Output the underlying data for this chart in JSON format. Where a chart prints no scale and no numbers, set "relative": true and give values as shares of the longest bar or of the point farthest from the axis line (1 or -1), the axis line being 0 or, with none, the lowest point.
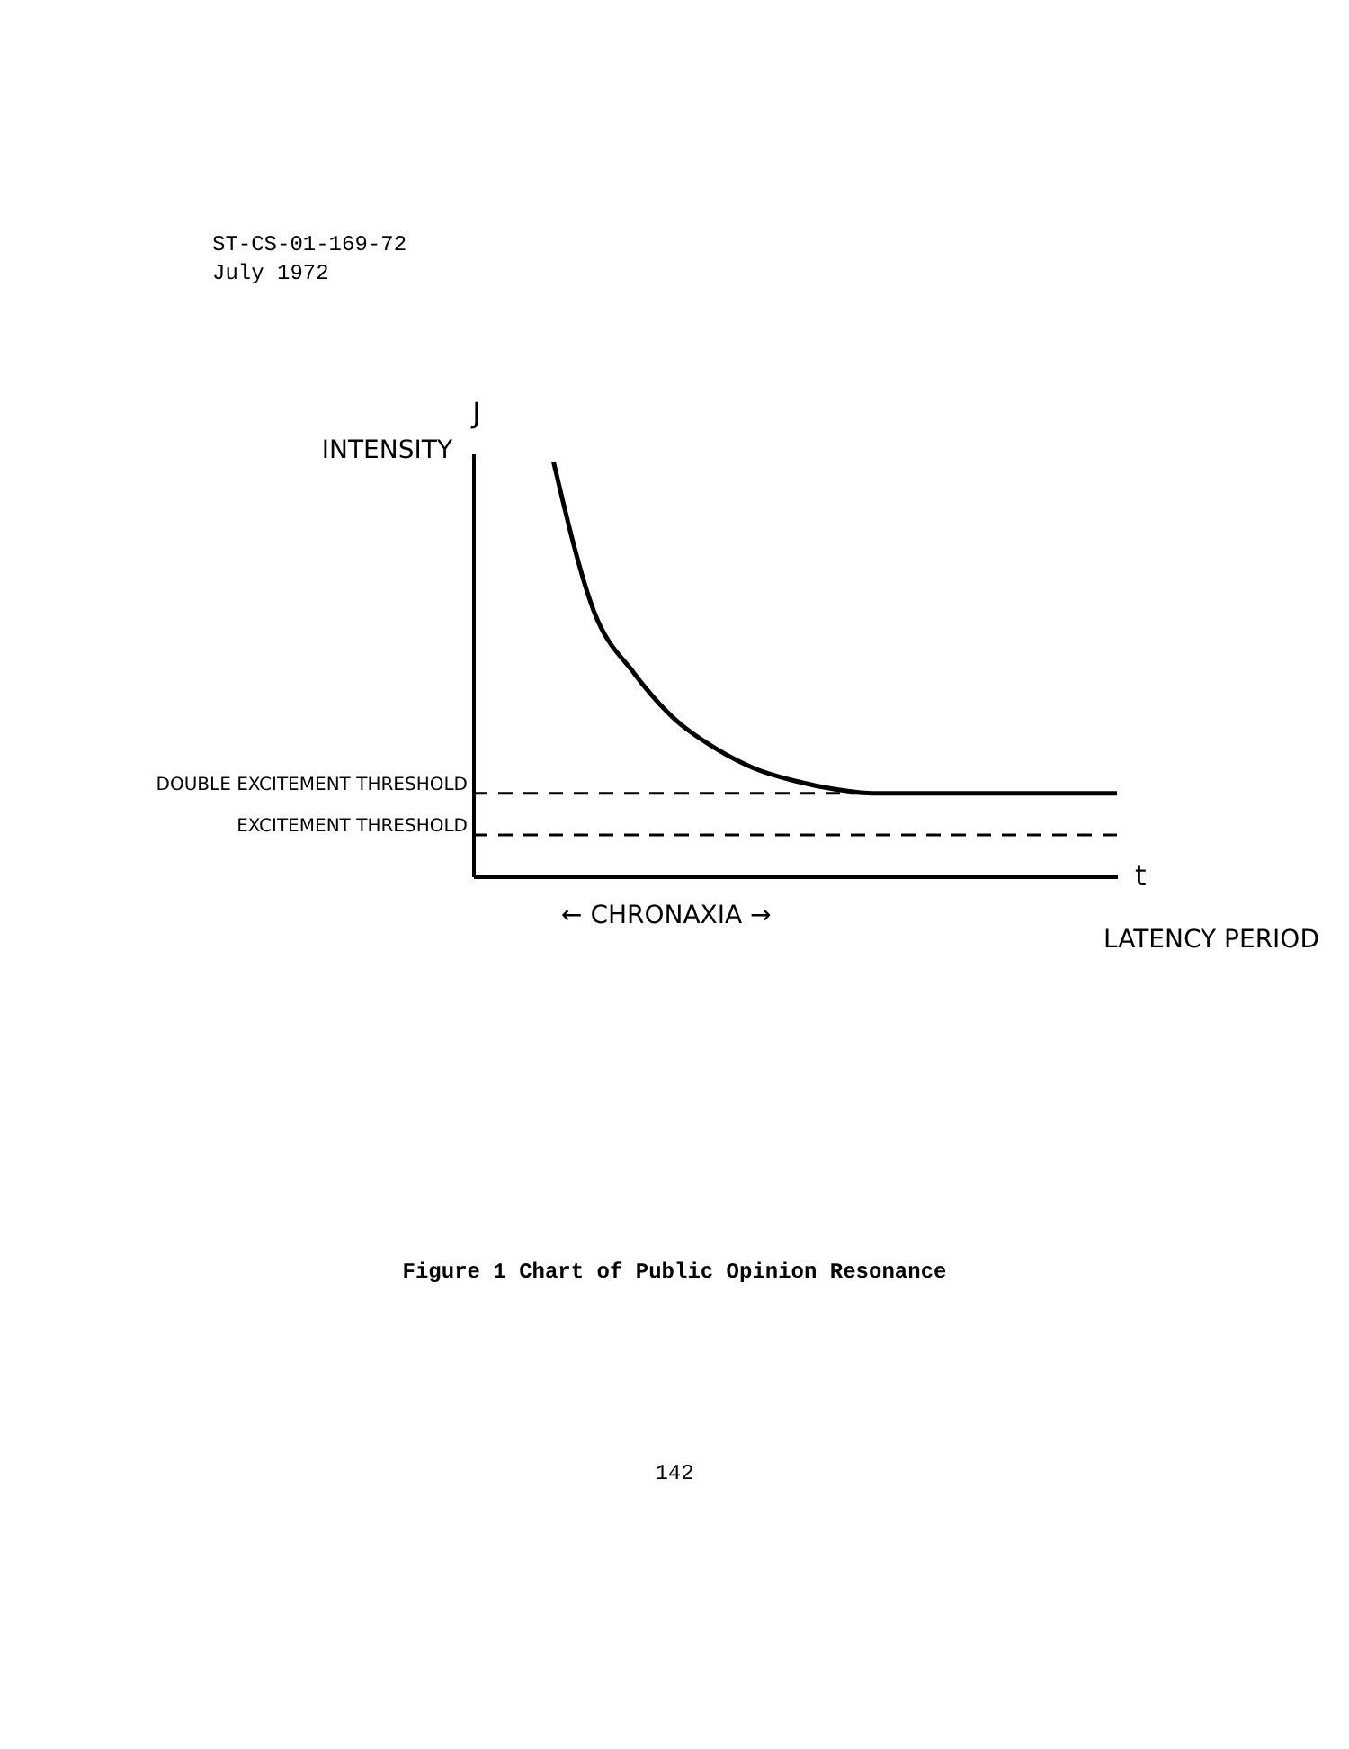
{
  "chart_data": {
    "type": "line",
    "title": "Figure 1 Chart of Public Opinion Resonance",
    "xlabel": "LATENCY PERIOD",
    "ylabel": "INTENSITY",
    "relative": true,
    "categories": [
      null,
      null,
      null,
      null,
      null,
      null,
      null,
      null,
      null,
      null,
      null,
      null,
      null,
      null,
      null,
      null,
      null
    ],
    "series": [
      {
        "color": "#000000",
        "values": [
          null,
          null,
          1,
          0.64,
          0.49,
          0.38,
          0.31,
          0.26,
          0.23,
          0.21,
          0.2,
          0.2,
          0.2,
          0.2,
          0.2,
          0.2,
          0.2
        ]
      }
    ],
    "ref_lines": [
      {
        "axis": "y",
        "value": 0.2,
        "label": "DOUBLE EXCITEMENT THRESHOLD",
        "line_style": "dashed",
        "color": "#000000"
      },
      {
        "axis": "y",
        "value": 0.1,
        "label": "EXCITEMENT THRESHOLD",
        "line_style": "dashed",
        "color": "#000000"
      }
    ],
    "annotations": [
      "ST-CS-01-169-72",
      "July 1972",
      "J",
      "t",
      "← CHRONAXIA →",
      "142"
    ],
    "grid": false,
    "marker": "none",
    "line_style": "solid"
  }
}
